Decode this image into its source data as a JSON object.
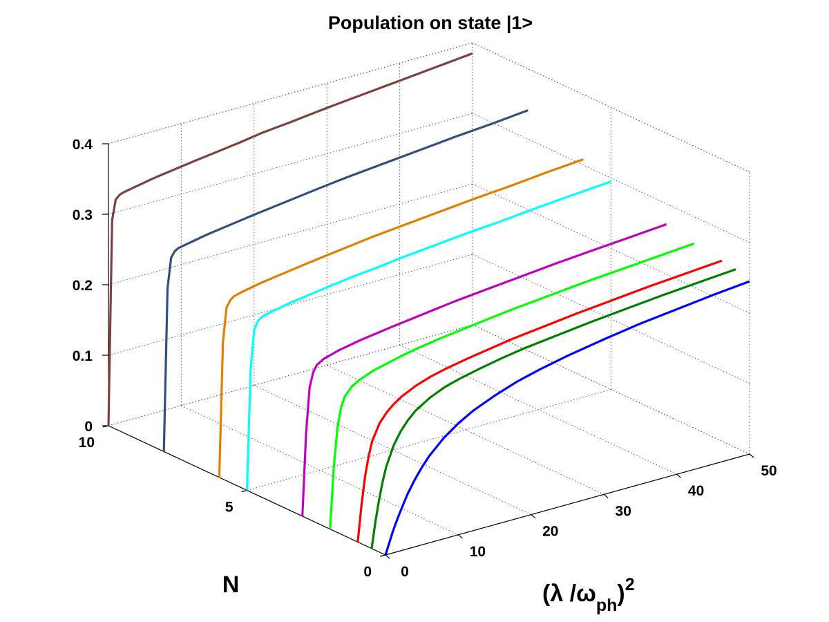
{
  "chart_data": {
    "type": "line",
    "projection": "3d",
    "title": "Population on state |1>",
    "xlabel": "(λ /ω_ph)^2",
    "xlabel_parts": {
      "open": "(λ  /ω",
      "sub": "ph",
      "close": ")",
      "sup": "2"
    },
    "ylabel": "N",
    "zlabel": "",
    "xlim": [
      0,
      50
    ],
    "ylim": [
      0,
      10
    ],
    "zlim": [
      0,
      0.4
    ],
    "x_ticks": [
      "0",
      "10",
      "20",
      "30",
      "40",
      "50"
    ],
    "y_ticks": [
      "0",
      "5",
      "10"
    ],
    "z_ticks": [
      "0",
      "0.1",
      "0.2",
      "0.3",
      "0.4"
    ],
    "grid": true,
    "x": [
      0,
      0.5,
      1,
      1.5,
      2,
      3,
      4,
      5,
      6,
      8,
      10,
      12,
      15,
      18,
      21,
      25,
      30,
      35,
      40,
      45,
      50
    ],
    "series": [
      {
        "name": "N=0",
        "N": 0,
        "color": "#0000ff",
        "values": [
          0.0,
          0.015,
          0.03,
          0.043,
          0.055,
          0.077,
          0.095,
          0.11,
          0.123,
          0.143,
          0.158,
          0.17,
          0.183,
          0.194,
          0.202,
          0.211,
          0.22,
          0.228,
          0.234,
          0.24,
          0.245
        ]
      },
      {
        "name": "N=0.5",
        "N": 0.5,
        "color": "#008000",
        "values": [
          0.0,
          0.035,
          0.065,
          0.09,
          0.11,
          0.137,
          0.155,
          0.168,
          0.178,
          0.191,
          0.2,
          0.206,
          0.213,
          0.219,
          0.224,
          0.229,
          0.235,
          0.24,
          0.245,
          0.249,
          0.253
        ]
      },
      {
        "name": "N=1",
        "N": 1,
        "color": "#ff0000",
        "values": [
          0.0,
          0.05,
          0.09,
          0.118,
          0.138,
          0.16,
          0.173,
          0.182,
          0.189,
          0.199,
          0.206,
          0.211,
          0.217,
          0.222,
          0.227,
          0.232,
          0.238,
          0.243,
          0.248,
          0.252,
          0.256
        ]
      },
      {
        "name": "N=2",
        "N": 2,
        "color": "#00ff00",
        "values": [
          0.0,
          0.085,
          0.14,
          0.168,
          0.182,
          0.194,
          0.2,
          0.204,
          0.208,
          0.213,
          0.218,
          0.222,
          0.227,
          0.231,
          0.235,
          0.24,
          0.245,
          0.25,
          0.254,
          0.258,
          0.262
        ]
      },
      {
        "name": "N=3",
        "N": 3,
        "color": "#bf00bf",
        "values": [
          0.0,
          0.115,
          0.18,
          0.2,
          0.209,
          0.215,
          0.218,
          0.221,
          0.223,
          0.227,
          0.23,
          0.233,
          0.237,
          0.241,
          0.245,
          0.249,
          0.254,
          0.259,
          0.263,
          0.267,
          0.271
        ]
      },
      {
        "name": "N=5",
        "N": 5,
        "color": "#00ffff",
        "values": [
          0.0,
          0.17,
          0.225,
          0.236,
          0.24,
          0.243,
          0.245,
          0.247,
          0.249,
          0.252,
          0.255,
          0.258,
          0.262,
          0.265,
          0.269,
          0.273,
          0.278,
          0.282,
          0.287,
          0.291,
          0.295
        ]
      },
      {
        "name": "N=6",
        "N": 6,
        "color": "#e08000",
        "values": [
          0.0,
          0.19,
          0.238,
          0.247,
          0.251,
          0.254,
          0.256,
          0.258,
          0.26,
          0.263,
          0.266,
          0.269,
          0.273,
          0.277,
          0.281,
          0.285,
          0.29,
          0.295,
          0.299,
          0.304,
          0.308
        ]
      },
      {
        "name": "N=8",
        "N": 8,
        "color": "#30507f",
        "values": [
          0.0,
          0.23,
          0.272,
          0.28,
          0.283,
          0.285,
          0.287,
          0.289,
          0.291,
          0.294,
          0.297,
          0.3,
          0.304,
          0.308,
          0.312,
          0.317,
          0.322,
          0.327,
          0.332,
          0.336,
          0.341
        ]
      },
      {
        "name": "N=10",
        "N": 10,
        "color": "#7f4040",
        "values": [
          0.0,
          0.29,
          0.318,
          0.323,
          0.325,
          0.327,
          0.329,
          0.331,
          0.333,
          0.336,
          0.339,
          0.342,
          0.346,
          0.35,
          0.355,
          0.359,
          0.365,
          0.37,
          0.375,
          0.38,
          0.385
        ]
      }
    ]
  }
}
